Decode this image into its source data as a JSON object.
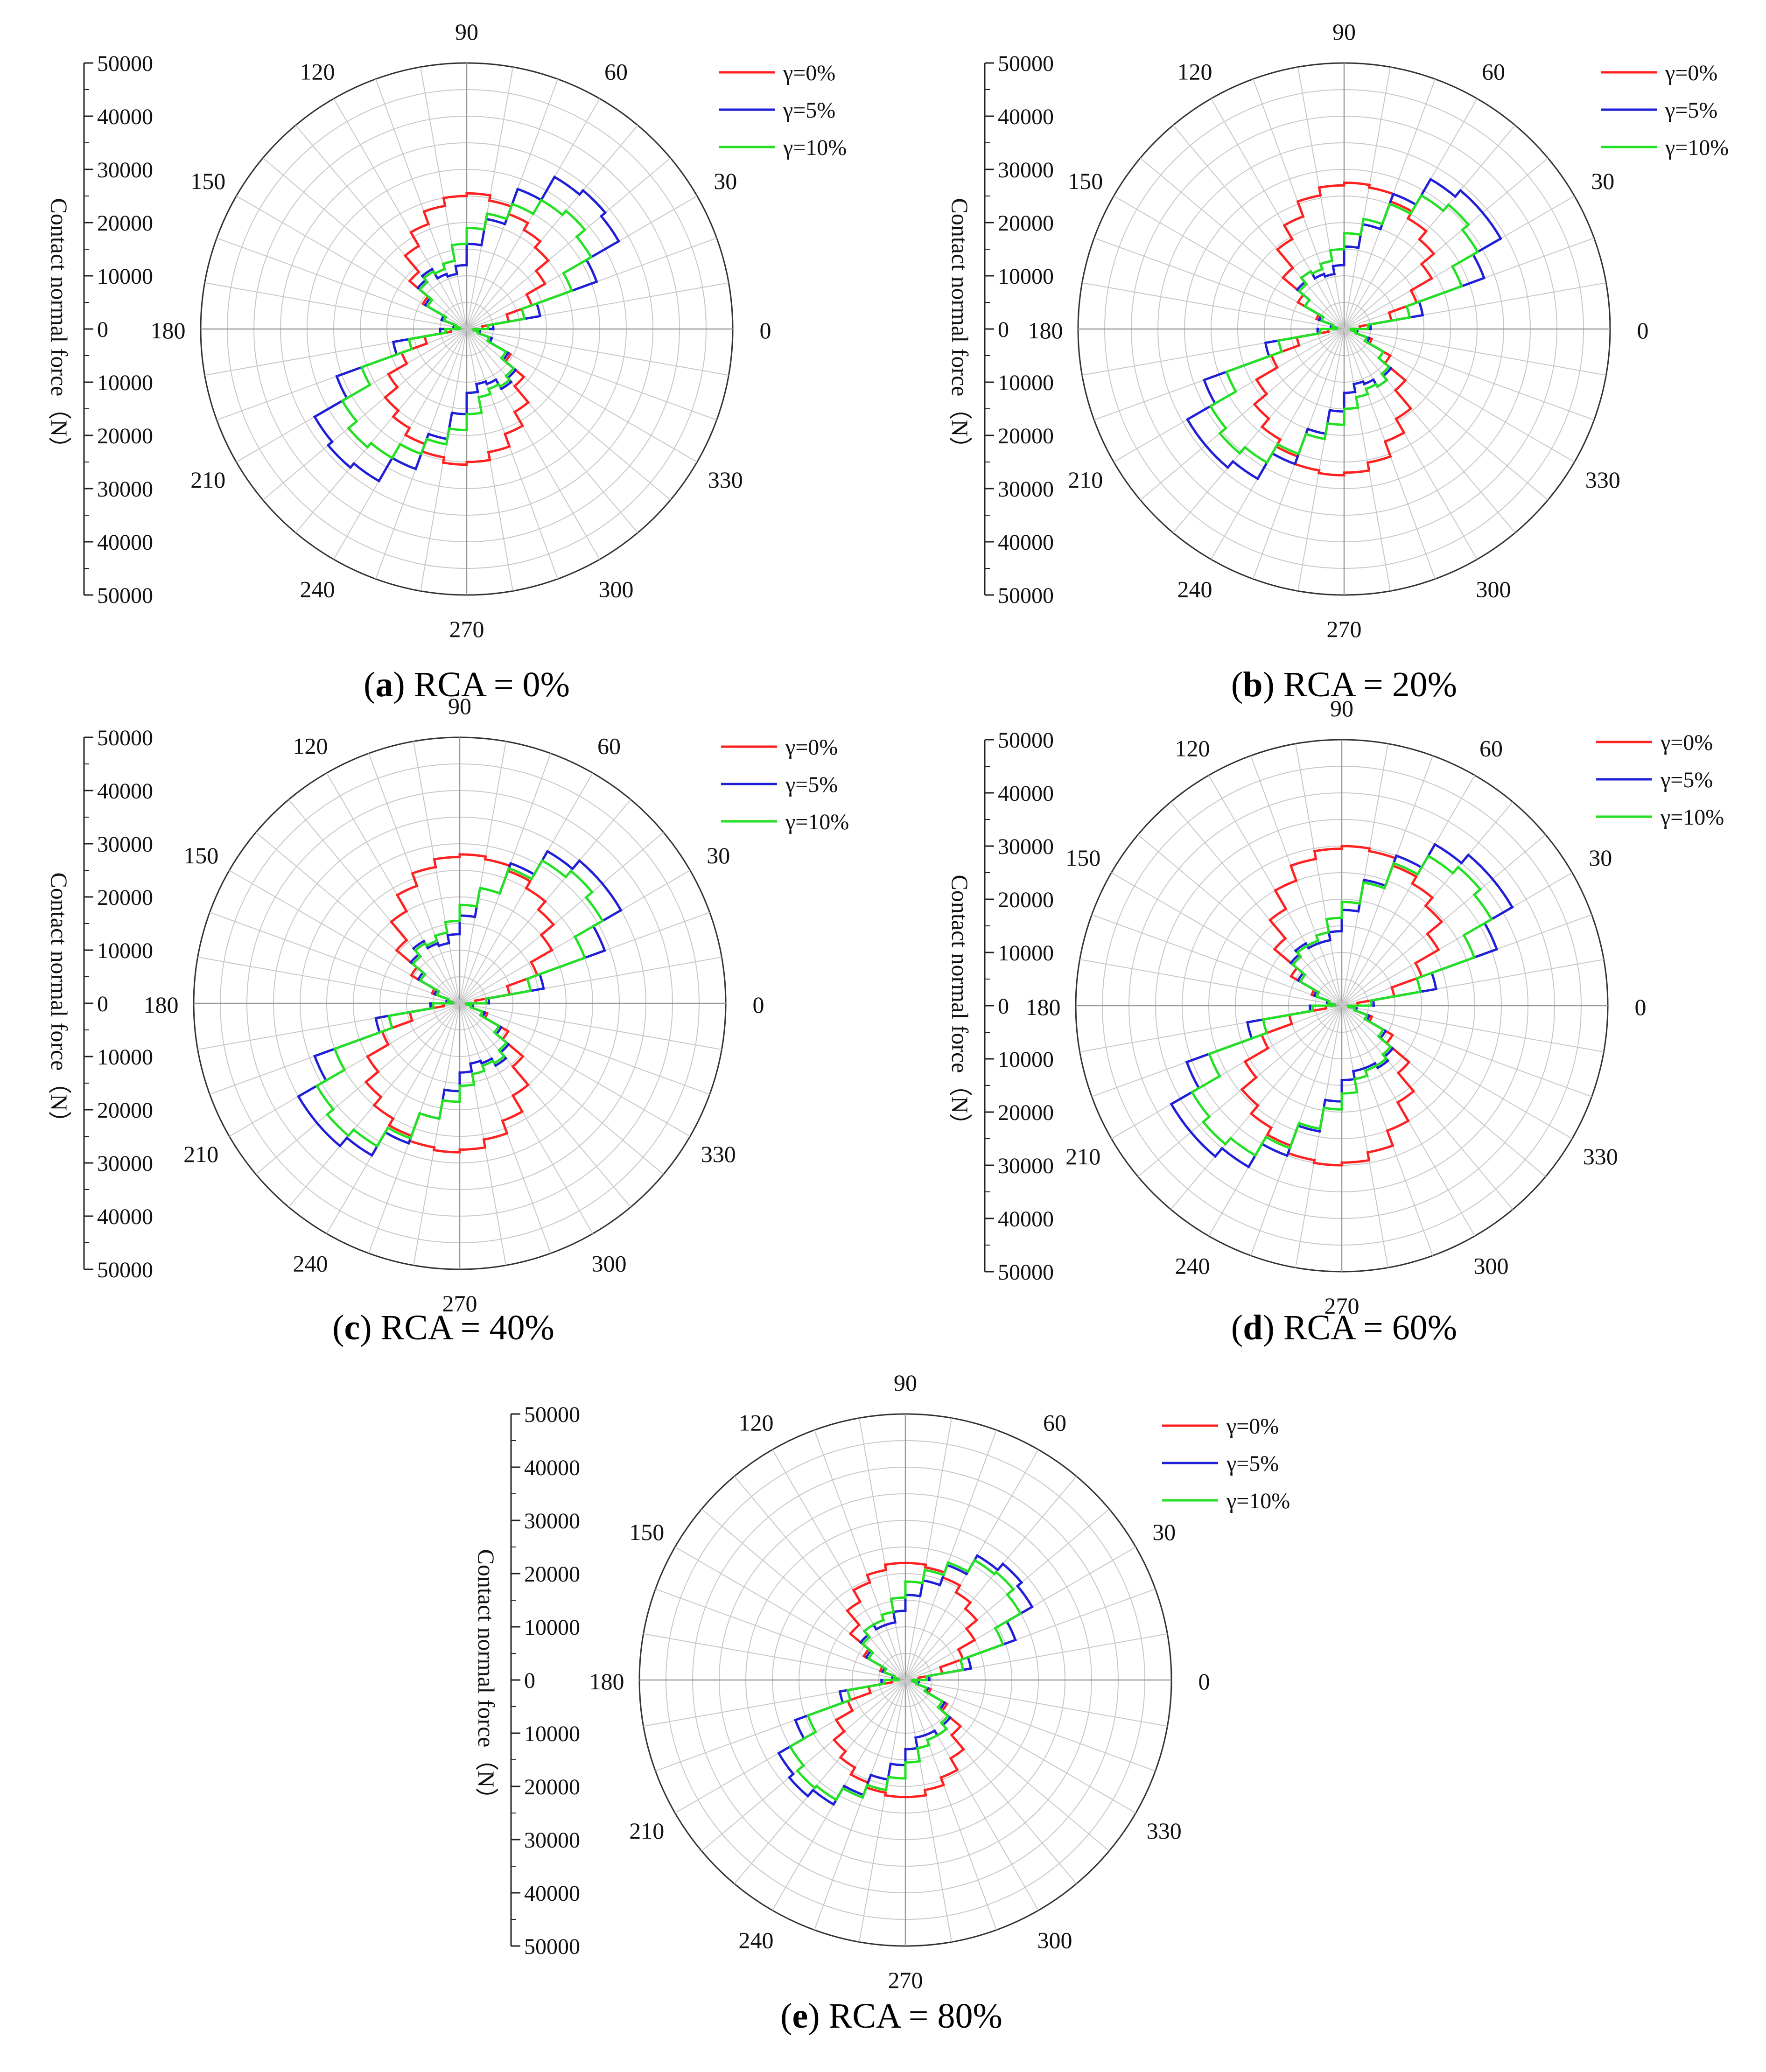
{
  "figure": {
    "panels": [
      {
        "letter": "a",
        "caption": " RCA = 0%"
      },
      {
        "letter": "b",
        "caption": " RCA = 20%"
      },
      {
        "letter": "c",
        "caption": " RCA = 40%"
      },
      {
        "letter": "d",
        "caption": " RCA = 60%"
      },
      {
        "letter": "e",
        "caption": " RCA = 80%"
      }
    ]
  },
  "colors": {
    "gamma0": "#ff2020",
    "gamma5": "#1f1fd8",
    "gamma10": "#22e022",
    "grid": "#c8c8c8",
    "axis": "#333333"
  },
  "chart_data": [
    {
      "type": "polar-rose",
      "panel": "a",
      "title": "RCA = 0%",
      "ylabel": "Contact normal force（N）",
      "radial_range": [
        0,
        50000
      ],
      "radial_ticks": [
        50000,
        40000,
        30000,
        20000,
        10000,
        0,
        10000,
        20000,
        30000,
        40000,
        50000
      ],
      "angle_labels": [
        0,
        30,
        60,
        90,
        120,
        150,
        180,
        210,
        240,
        270,
        300,
        330
      ],
      "grid": true,
      "legend_position": "top-right",
      "bin_centers_deg": [
        5,
        15,
        25,
        35,
        45,
        55,
        65,
        75,
        85,
        95,
        105,
        115,
        125,
        135,
        145,
        155,
        165,
        175
      ],
      "series": [
        {
          "name": "γ=0%",
          "values": [
            3000,
            8000,
            13000,
            17000,
            20000,
            21500,
            23000,
            24500,
            25500,
            25000,
            23500,
            21000,
            18000,
            14000,
            9500,
            5000,
            2500,
            1500
          ]
        },
        {
          "name": "γ=5%",
          "values": [
            5000,
            14000,
            26000,
            33000,
            34000,
            33000,
            28000,
            21000,
            16000,
            12000,
            10500,
            11000,
            13000,
            12000,
            9000,
            5000,
            2500,
            1500
          ]
        },
        {
          "name": "γ=10%",
          "values": [
            4000,
            11000,
            21000,
            27000,
            29000,
            28000,
            25000,
            22000,
            19000,
            16000,
            13000,
            12000,
            12500,
            11500,
            8500,
            4500,
            2200,
            1300
          ]
        }
      ]
    },
    {
      "type": "polar-rose",
      "panel": "b",
      "title": "RCA = 20%",
      "ylabel": "Contact normal force（N）",
      "radial_range": [
        0,
        50000
      ],
      "radial_ticks": [
        50000,
        40000,
        30000,
        20000,
        10000,
        0,
        10000,
        20000,
        30000,
        40000,
        50000
      ],
      "angle_labels": [
        0,
        30,
        60,
        90,
        120,
        150,
        180,
        210,
        240,
        270,
        300,
        330
      ],
      "grid": true,
      "legend_position": "top-right",
      "bin_centers_deg": [
        5,
        15,
        25,
        35,
        45,
        55,
        65,
        75,
        85,
        95,
        105,
        115,
        125,
        135,
        145,
        155,
        165,
        175
      ],
      "series": [
        {
          "name": "γ=0%",
          "values": [
            3000,
            9000,
            14500,
            19000,
            22000,
            24000,
            25500,
            27000,
            27500,
            27000,
            25500,
            22500,
            19500,
            15000,
            10000,
            5500,
            2500,
            1500
          ]
        },
        {
          "name": "γ=5%",
          "values": [
            5000,
            15000,
            28000,
            34000,
            34000,
            32500,
            27000,
            20000,
            15500,
            12000,
            10500,
            11000,
            12500,
            11500,
            8500,
            5000,
            2500,
            1500
          ]
        },
        {
          "name": "γ=10%",
          "values": [
            4500,
            12500,
            23500,
            29000,
            30500,
            29000,
            25000,
            21000,
            18000,
            15000,
            13000,
            12000,
            12500,
            11000,
            8500,
            4500,
            2200,
            1300
          ]
        }
      ]
    },
    {
      "type": "polar-rose",
      "panel": "c",
      "title": "RCA = 40%",
      "ylabel": "Contact normal force（N）",
      "radial_range": [
        0,
        50000
      ],
      "radial_ticks": [
        50000,
        40000,
        30000,
        20000,
        10000,
        0,
        10000,
        20000,
        30000,
        40000,
        50000
      ],
      "angle_labels": [
        0,
        30,
        60,
        90,
        120,
        150,
        180,
        210,
        240,
        270,
        300,
        330
      ],
      "grid": true,
      "legend_position": "top-right",
      "bin_centers_deg": [
        5,
        15,
        25,
        35,
        45,
        55,
        65,
        75,
        85,
        95,
        105,
        115,
        125,
        135,
        145,
        155,
        165,
        175
      ],
      "series": [
        {
          "name": "γ=0%",
          "values": [
            3000,
            9500,
            15500,
            20000,
            23000,
            25000,
            26500,
            27500,
            28000,
            27500,
            26000,
            23500,
            20000,
            15500,
            10500,
            5500,
            2500,
            1500
          ]
        },
        {
          "name": "γ=5%",
          "values": [
            5500,
            16000,
            29000,
            35000,
            35000,
            33000,
            28000,
            22000,
            16500,
            13000,
            11500,
            12000,
            13500,
            12000,
            9000,
            5000,
            2500,
            1500
          ]
        },
        {
          "name": "γ=10%",
          "values": [
            5000,
            13500,
            25000,
            31000,
            32500,
            31000,
            27000,
            22000,
            18500,
            15500,
            13500,
            12500,
            13000,
            11500,
            8500,
            4500,
            2200,
            1300
          ]
        }
      ]
    },
    {
      "type": "polar-rose",
      "panel": "d",
      "title": "RCA = 60%",
      "ylabel": "Contact normal force（N）",
      "radial_range": [
        0,
        50000
      ],
      "radial_ticks": [
        50000,
        40000,
        30000,
        20000,
        10000,
        0,
        10000,
        20000,
        30000,
        40000,
        50000
      ],
      "angle_labels": [
        0,
        30,
        60,
        90,
        120,
        150,
        180,
        210,
        240,
        270,
        300,
        330
      ],
      "grid": true,
      "legend_position": "top-right",
      "bin_centers_deg": [
        5,
        15,
        25,
        35,
        45,
        55,
        65,
        75,
        85,
        95,
        105,
        115,
        125,
        135,
        145,
        155,
        165,
        175
      ],
      "series": [
        {
          "name": "γ=0%",
          "values": [
            3000,
            10000,
            16000,
            21000,
            24500,
            26500,
            28000,
            29500,
            30000,
            29500,
            28000,
            25000,
            21000,
            16500,
            11000,
            6000,
            2800,
            1500
          ]
        },
        {
          "name": "γ=5%",
          "values": [
            6000,
            18000,
            31000,
            37000,
            37000,
            35000,
            30000,
            24000,
            18000,
            14000,
            12500,
            12500,
            13500,
            12500,
            9500,
            5500,
            2800,
            1500
          ]
        },
        {
          "name": "γ=10%",
          "values": [
            5500,
            15000,
            26500,
            32500,
            34000,
            32500,
            28500,
            23500,
            19500,
            16500,
            14000,
            13000,
            13000,
            12000,
            9000,
            5000,
            2500,
            1300
          ]
        }
      ]
    },
    {
      "type": "polar-rose",
      "panel": "e",
      "title": "RCA = 80%",
      "ylabel": "Contact normal force（N）",
      "radial_range": [
        0,
        50000
      ],
      "radial_ticks": [
        50000,
        40000,
        30000,
        20000,
        10000,
        0,
        10000,
        20000,
        30000,
        40000,
        50000
      ],
      "angle_labels": [
        0,
        30,
        60,
        90,
        120,
        150,
        180,
        210,
        240,
        270,
        300,
        330
      ],
      "grid": true,
      "legend_position": "top-right",
      "bin_centers_deg": [
        5,
        15,
        25,
        35,
        45,
        55,
        65,
        75,
        85,
        95,
        105,
        115,
        125,
        135,
        145,
        155,
        165,
        175
      ],
      "series": [
        {
          "name": "γ=0%",
          "values": [
            2500,
            7000,
            11500,
            15000,
            17500,
            19000,
            20500,
            21500,
            22000,
            22000,
            21000,
            19500,
            17000,
            13500,
            9000,
            5000,
            2500,
            1500
          ]
        },
        {
          "name": "γ=5%",
          "values": [
            4500,
            12500,
            22000,
            27500,
            28500,
            27000,
            23000,
            19000,
            16000,
            13000,
            11000,
            11000,
            12000,
            11000,
            8500,
            4500,
            2500,
            1500
          ]
        },
        {
          "name": "γ=10%",
          "values": [
            4000,
            11000,
            19500,
            25000,
            26500,
            26000,
            23500,
            21000,
            18500,
            15500,
            13000,
            12000,
            12000,
            10500,
            8000,
            4200,
            2200,
            1300
          ]
        }
      ]
    }
  ]
}
